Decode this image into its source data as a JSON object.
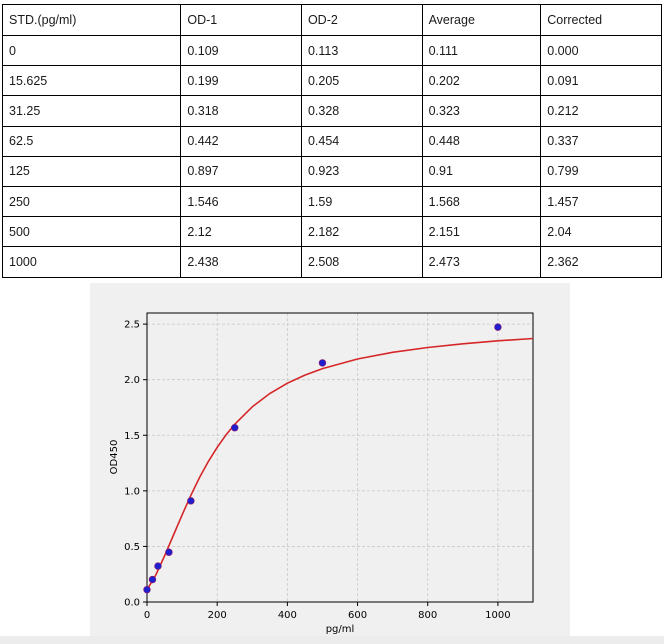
{
  "table": {
    "headers": [
      "STD.(pg/ml)",
      "OD-1",
      "OD-2",
      "Average",
      "Corrected"
    ],
    "rows": [
      [
        "0",
        "0.109",
        "0.113",
        "0.111",
        "0.000"
      ],
      [
        "15.625",
        "0.199",
        "0.205",
        "0.202",
        "0.091"
      ],
      [
        "31.25",
        "0.318",
        "0.328",
        "0.323",
        "0.212"
      ],
      [
        "62.5",
        "0.442",
        "0.454",
        "0.448",
        "0.337"
      ],
      [
        "125",
        "0.897",
        "0.923",
        "0.91",
        "0.799"
      ],
      [
        "250",
        "1.546",
        "1.59",
        "1.568",
        "1.457"
      ],
      [
        "500",
        "2.12",
        "2.182",
        "2.151",
        "2.04"
      ],
      [
        "1000",
        "2.438",
        "2.508",
        "2.473",
        "2.362"
      ]
    ]
  },
  "chart_data": {
    "type": "scatter",
    "xlabel": "pg/ml",
    "ylabel": "OD450",
    "xlim": [
      0,
      1100
    ],
    "ylim": [
      0,
      2.6
    ],
    "xticks": [
      0,
      200,
      400,
      600,
      800,
      1000
    ],
    "yticks": [
      0.0,
      0.5,
      1.0,
      1.5,
      2.0,
      2.5
    ],
    "grid": true,
    "points": {
      "x": [
        0,
        15.625,
        31.25,
        62.5,
        125,
        250,
        500,
        1000
      ],
      "y": [
        0.111,
        0.202,
        0.323,
        0.448,
        0.91,
        1.568,
        2.151,
        2.473
      ],
      "color": "#1f1fd0"
    },
    "fit_curve": {
      "color": "#d62728",
      "x": [
        0,
        25,
        50,
        75,
        100,
        125,
        150,
        175,
        200,
        225,
        250,
        300,
        350,
        400,
        450,
        500,
        600,
        700,
        800,
        900,
        1000,
        1100
      ],
      "y": [
        0.111,
        0.243,
        0.413,
        0.598,
        0.784,
        0.96,
        1.121,
        1.265,
        1.392,
        1.503,
        1.599,
        1.756,
        1.876,
        1.968,
        2.041,
        2.1,
        2.186,
        2.246,
        2.29,
        2.323,
        2.35,
        2.371
      ]
    }
  }
}
